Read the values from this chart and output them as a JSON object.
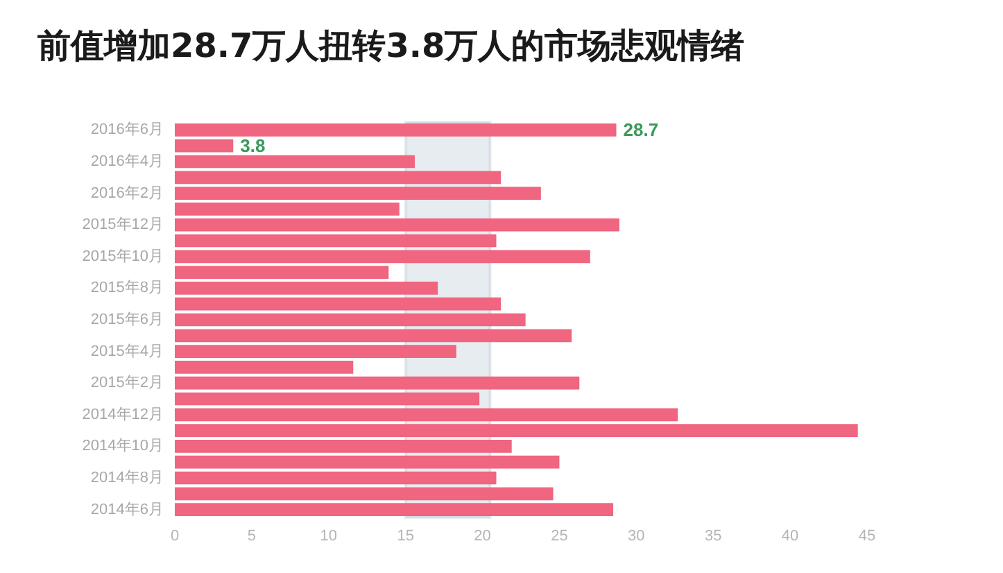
{
  "chart_data": {
    "type": "bar",
    "orientation": "horizontal",
    "title": "前值增加28.7万人扭转3.8万人的市场悲观情绪",
    "categories": [
      "2016年6月",
      null,
      "2016年4月",
      null,
      "2016年2月",
      null,
      "2015年12月",
      null,
      "2015年10月",
      null,
      "2015年8月",
      null,
      "2015年6月",
      null,
      "2015年4月",
      null,
      "2015年2月",
      null,
      "2014年12月",
      null,
      "2014年10月",
      null,
      "2014年8月",
      null,
      "2014年6月"
    ],
    "values": [
      28.7,
      3.8,
      15.6,
      21.2,
      23.8,
      14.6,
      28.9,
      20.9,
      27.0,
      13.9,
      17.1,
      21.2,
      22.8,
      25.8,
      18.3,
      11.6,
      26.3,
      19.8,
      32.7,
      44.4,
      21.9,
      25.0,
      20.9,
      24.6,
      28.5
    ],
    "value_labels": [
      "28.7",
      "3.8",
      null,
      null,
      null,
      null,
      null,
      null,
      null,
      null,
      null,
      null,
      null,
      null,
      null,
      null,
      null,
      null,
      null,
      null,
      null,
      null,
      null,
      null,
      null
    ],
    "color": "#f0657f",
    "xlim": [
      0,
      45
    ],
    "xticks": [
      0,
      5,
      10,
      15,
      20,
      25,
      30,
      35,
      40,
      45
    ],
    "bands": [
      {
        "axis": "x",
        "from": 15,
        "to": 20.5,
        "color": "#3b5f80"
      }
    ],
    "grid": false
  }
}
